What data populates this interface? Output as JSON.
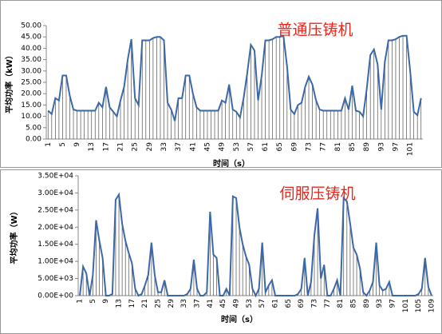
{
  "chart_data": [
    {
      "type": "line",
      "title": "普通压铸机",
      "xlabel": "时间（s）",
      "ylabel": "平均功率（kW）",
      "color": "#3a68a8",
      "drop_lines": true,
      "drop_line_color": "#505050",
      "categories": [
        1,
        null,
        null,
        null,
        5,
        null,
        null,
        null,
        9,
        null,
        null,
        null,
        13,
        null,
        null,
        null,
        17,
        null,
        null,
        null,
        21,
        null,
        null,
        null,
        25,
        null,
        null,
        null,
        29,
        null,
        null,
        null,
        33,
        null,
        null,
        null,
        37,
        null,
        null,
        null,
        41,
        null,
        null,
        null,
        45,
        null,
        null,
        null,
        49,
        null,
        null,
        null,
        53,
        null,
        null,
        null,
        57,
        null,
        null,
        null,
        61,
        null,
        null,
        null,
        65,
        null,
        null,
        null,
        69,
        null,
        null,
        null,
        73,
        null,
        null,
        null,
        77,
        null,
        null,
        null,
        81,
        null,
        null,
        null,
        85,
        null,
        null,
        null,
        89,
        null,
        null,
        null,
        93,
        null,
        null,
        null,
        97,
        null,
        null,
        null,
        101,
        null,
        null,
        null
      ],
      "values": [
        12.5,
        11,
        18,
        17,
        28,
        28,
        19,
        13,
        12.5,
        12.5,
        12.5,
        12.5,
        12.5,
        12.5,
        16,
        14,
        23,
        14,
        12,
        10,
        17,
        23,
        35,
        44,
        18,
        15,
        43.5,
        43.5,
        43.5,
        44.5,
        45,
        45,
        43.5,
        16,
        13,
        8,
        18,
        18,
        28,
        28,
        20,
        14,
        12.5,
        12.5,
        12.5,
        12.5,
        12.5,
        12.5,
        17,
        16,
        24,
        13,
        12,
        9.5,
        18,
        29,
        41.5,
        39,
        17,
        28,
        43.5,
        43.5,
        44,
        45,
        45,
        45.5,
        32,
        13,
        11,
        15,
        16,
        23,
        27.5,
        24,
        17,
        13,
        12.5,
        12.5,
        12.5,
        12.5,
        12.5,
        12.5,
        18,
        13,
        23.5,
        12.5,
        12,
        10,
        22,
        37,
        39.5,
        33,
        13,
        34,
        43.5,
        43.5,
        44,
        45,
        45.5,
        45.5,
        30,
        12,
        10.5,
        18
      ],
      "ylim": [
        0,
        50
      ],
      "yticks": [
        {
          "value": 0,
          "label": "0.00"
        },
        {
          "value": 5,
          "label": "5.00"
        },
        {
          "value": 10,
          "label": "10.00"
        },
        {
          "value": 15,
          "label": "15.00"
        },
        {
          "value": 20,
          "label": "20.00"
        },
        {
          "value": 25,
          "label": "25.00"
        },
        {
          "value": 30,
          "label": "30.00"
        },
        {
          "value": 35,
          "label": "35.00"
        },
        {
          "value": 40,
          "label": "40.00"
        },
        {
          "value": 45,
          "label": "45.00"
        },
        {
          "value": 50,
          "label": "50.00"
        }
      ]
    },
    {
      "type": "line",
      "title": "伺服压铸机",
      "xlabel": "时间（s）",
      "ylabel": "平均功率（W）",
      "color": "#3a68a8",
      "drop_lines": true,
      "drop_line_color": "#505050",
      "categories": [
        1,
        null,
        null,
        null,
        5,
        null,
        null,
        null,
        9,
        null,
        null,
        null,
        13,
        null,
        null,
        null,
        17,
        null,
        null,
        null,
        21,
        null,
        null,
        null,
        25,
        null,
        null,
        null,
        29,
        null,
        null,
        null,
        33,
        null,
        null,
        null,
        37,
        null,
        null,
        null,
        41,
        null,
        null,
        null,
        45,
        null,
        null,
        null,
        49,
        null,
        null,
        null,
        53,
        null,
        null,
        null,
        57,
        null,
        null,
        null,
        61,
        null,
        null,
        null,
        65,
        null,
        null,
        null,
        69,
        null,
        null,
        null,
        73,
        null,
        null,
        null,
        77,
        null,
        null,
        null,
        81,
        null,
        null,
        null,
        85,
        null,
        null,
        null,
        89,
        null,
        null,
        null,
        93,
        null,
        null,
        null,
        97,
        null,
        null,
        null,
        101,
        null,
        null,
        null,
        105,
        null,
        null,
        null,
        109
      ],
      "values": [
        0,
        8500,
        6500,
        0,
        6000,
        22000,
        16000,
        11000,
        0,
        0,
        500,
        28000,
        29500,
        21000,
        16000,
        12500,
        9500,
        2000,
        0,
        500,
        3000,
        6000,
        15500,
        6000,
        1000,
        1000,
        4500,
        0,
        0,
        0,
        0,
        0,
        0,
        500,
        2000,
        10500,
        2000,
        0,
        0,
        1000,
        24500,
        12000,
        11000,
        0,
        0,
        2000,
        0,
        29000,
        28500,
        20000,
        15000,
        11500,
        9000,
        2000,
        0,
        2000,
        15500,
        1000,
        3000,
        4500,
        0,
        0,
        0,
        0,
        0,
        0,
        0,
        500,
        2000,
        11000,
        0,
        4000,
        17500,
        25500,
        5000,
        9000,
        0,
        0,
        2000,
        4500,
        0,
        28500,
        27500,
        21000,
        14000,
        12000,
        8000,
        1000,
        0,
        1500,
        4000,
        15500,
        3000,
        1500,
        2000,
        4000,
        0,
        0,
        0,
        0,
        0,
        0,
        0,
        0,
        500,
        2000,
        11000,
        2500,
        0
      ],
      "ylim": [
        0,
        35000
      ],
      "yticks": [
        {
          "value": 0,
          "label": "0.00E+00"
        },
        {
          "value": 5000,
          "label": "5.00E+03"
        },
        {
          "value": 10000,
          "label": "1.00E+04"
        },
        {
          "value": 15000,
          "label": "1.50E+04"
        },
        {
          "value": 20000,
          "label": "2.00E+04"
        },
        {
          "value": 25000,
          "label": "2.50E+04"
        },
        {
          "value": 30000,
          "label": "3.00E+04"
        },
        {
          "value": 35000,
          "label": "3.50E+04"
        }
      ]
    }
  ]
}
